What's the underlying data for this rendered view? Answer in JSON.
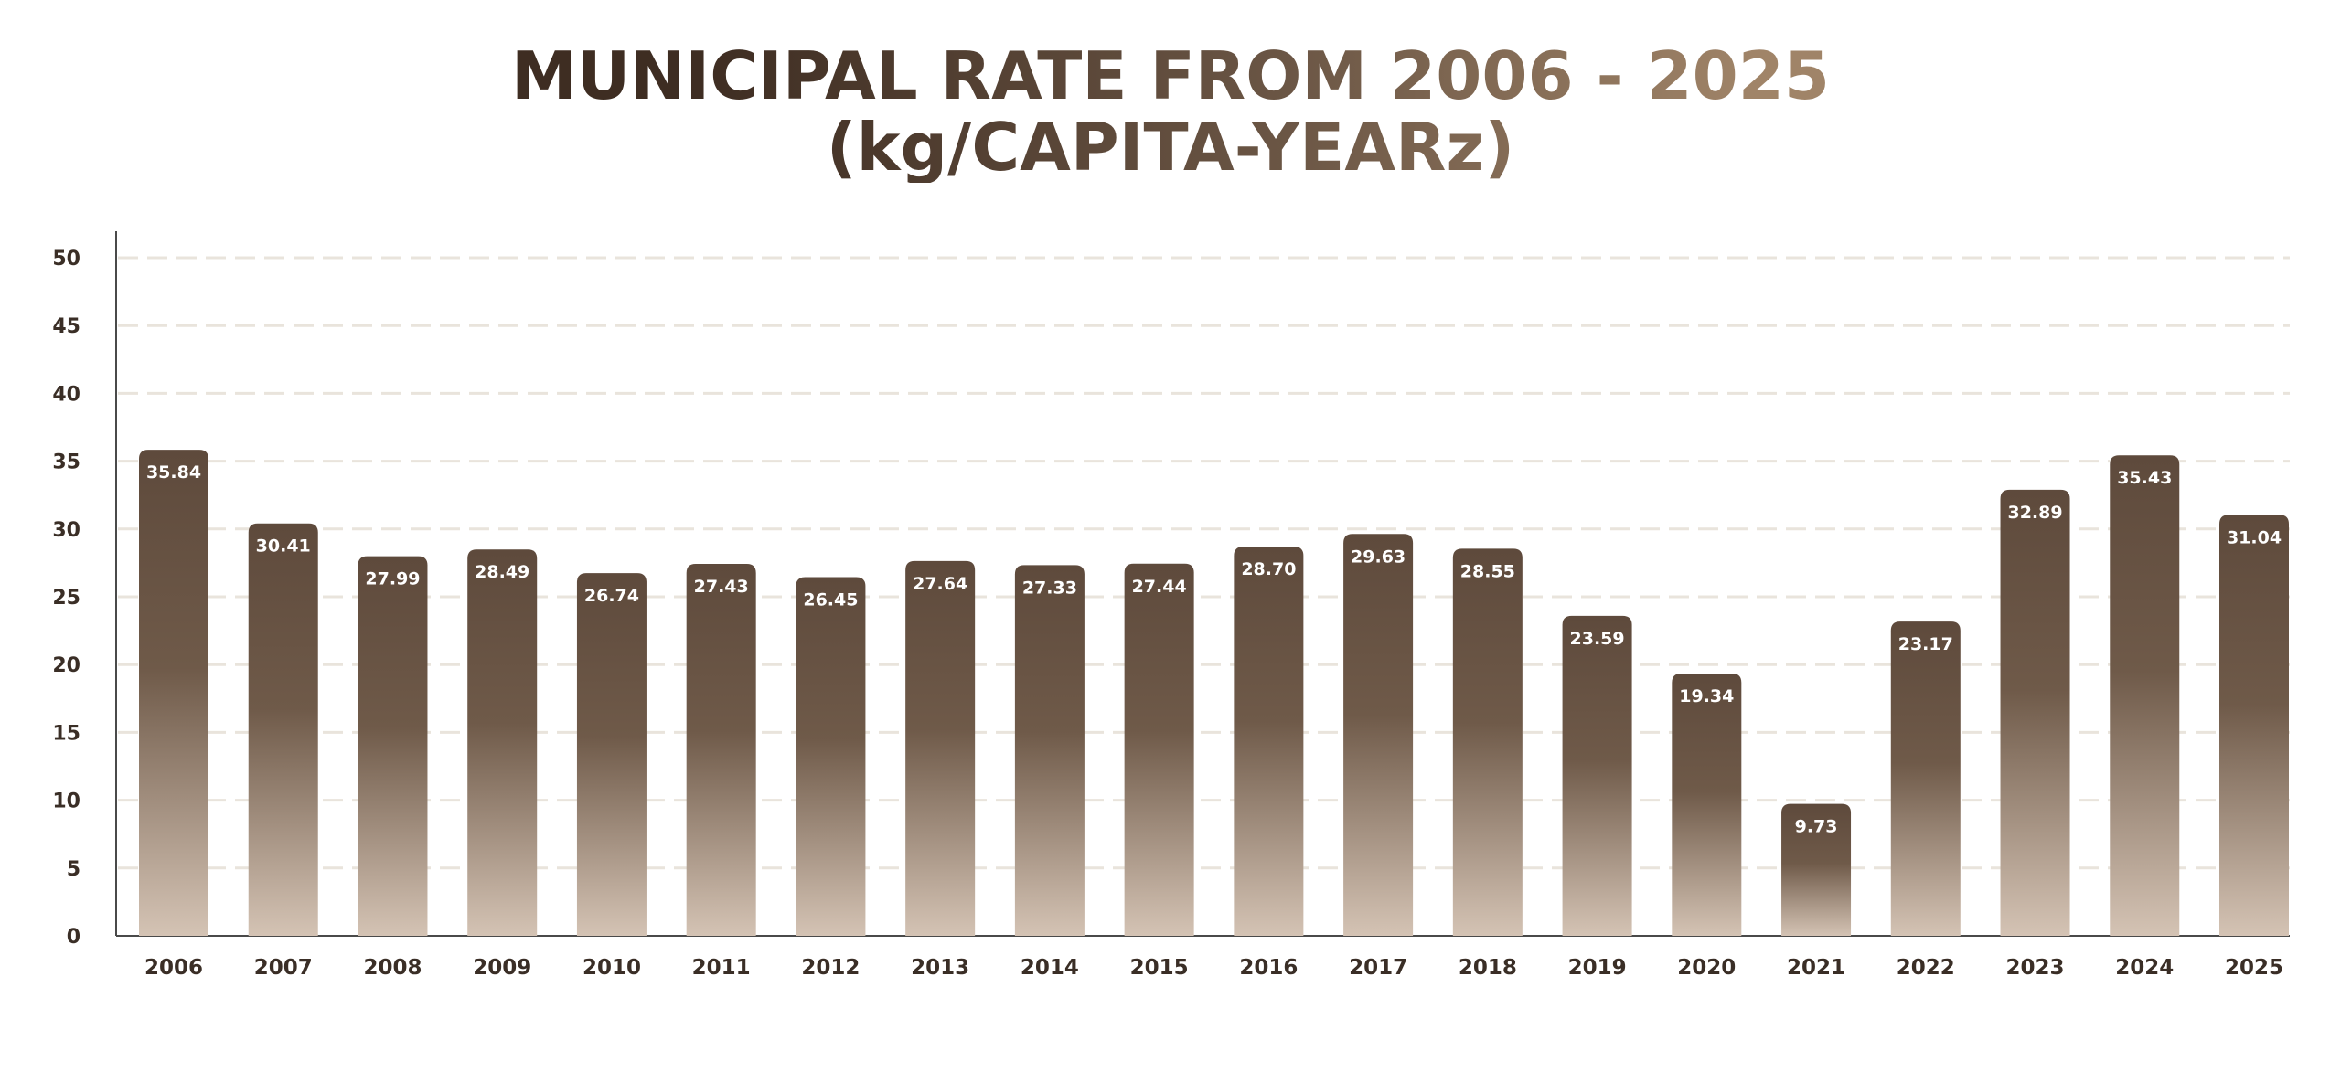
{
  "chart_data": {
    "type": "bar",
    "title_line1": "MUNICIPAL RATE FROM 2006 - 2025",
    "title_line2": "(kg/CAPITA-YEARz)",
    "xlabel": "",
    "ylabel": "",
    "ylim": [
      0,
      50
    ],
    "yticks": [
      0,
      5,
      10,
      15,
      20,
      25,
      30,
      35,
      40,
      45,
      50
    ],
    "grid": true,
    "categories": [
      "2006",
      "2007",
      "2008",
      "2009",
      "2010",
      "2011",
      "2012",
      "2013",
      "2014",
      "2015",
      "2016",
      "2017",
      "2018",
      "2019",
      "2020",
      "2021",
      "2022",
      "2023",
      "2024",
      "2025"
    ],
    "values": [
      35.84,
      30.41,
      27.99,
      28.49,
      26.74,
      27.43,
      26.45,
      27.64,
      27.33,
      27.44,
      28.7,
      29.63,
      28.55,
      23.59,
      19.34,
      9.73,
      23.17,
      32.89,
      35.43,
      31.04
    ],
    "data_labels": [
      "35.84",
      "30.41",
      "27.99",
      "28.49",
      "26.74",
      "27.43",
      "26.45",
      "27.64",
      "27.33",
      "27.44",
      "28.70",
      "29.63",
      "28.55",
      "23.59",
      "19.34",
      "9.73",
      "23.17",
      "32.89",
      "35.43",
      "31.04"
    ],
    "colors": {
      "bar_top": "#5e4a3c",
      "bar_bottom": "#d4c3b4",
      "grid": "#e9e4dc",
      "axis": "#4a4a4a",
      "title_dark": "#3e2d22",
      "title_light": "#a08468"
    }
  }
}
